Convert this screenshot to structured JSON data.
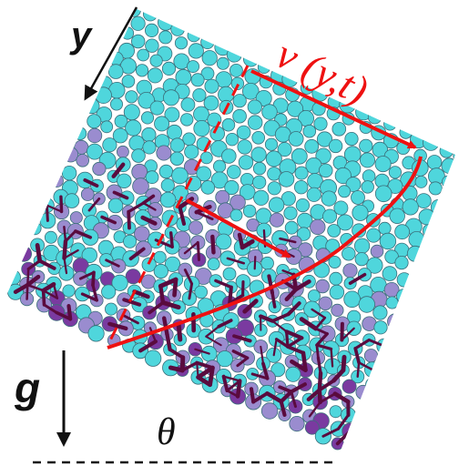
{
  "labels": {
    "depth_axis": "y",
    "velocity_profile": "v (y,t)",
    "gravity": "g",
    "angle": "θ"
  },
  "colors": {
    "particle_fill": "#4fd6dc",
    "particle_stroke": "#3a6e7a",
    "force_particle_fill": "#9a8ccf",
    "strong_force_particle_fill": "#7a3aa0",
    "force_chain": "#5a0b3e",
    "profile_arrow": "#ee1111",
    "black_arrow": "#111111"
  }
}
